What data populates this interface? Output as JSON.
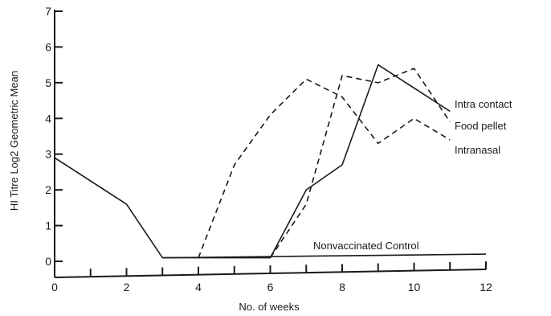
{
  "chart_data": {
    "type": "line",
    "title": "",
    "xlabel": "No. of weeks",
    "ylabel": "HI Titre Log2 Geometric Mean",
    "xlim": [
      0,
      12
    ],
    "ylim": [
      0,
      7
    ],
    "x_ticks": [
      0,
      2,
      4,
      6,
      8,
      10,
      12
    ],
    "x_minor_ticks": [
      1,
      3,
      5,
      7,
      9,
      11
    ],
    "y_ticks": [
      0,
      1,
      2,
      3,
      4,
      5,
      6,
      7
    ],
    "grid": false,
    "legend": "none",
    "series": [
      {
        "name": "Intra contact",
        "style": "dashed",
        "points": [
          [
            6,
            0.1
          ],
          [
            7,
            1.6
          ],
          [
            8,
            5.2
          ],
          [
            9,
            5.0
          ],
          [
            10,
            5.4
          ],
          [
            11,
            3.9
          ]
        ]
      },
      {
        "name": "Food pellet",
        "style": "solid",
        "points": [
          [
            0,
            2.9
          ],
          [
            2,
            1.6
          ],
          [
            3,
            0.1
          ],
          [
            4,
            0.1
          ],
          [
            6,
            0.1
          ],
          [
            7,
            2.0
          ],
          [
            8,
            2.7
          ],
          [
            9,
            5.5
          ],
          [
            11,
            4.2
          ]
        ]
      },
      {
        "name": "Intranasal",
        "style": "dashed",
        "points": [
          [
            4,
            0.1
          ],
          [
            5,
            2.7
          ],
          [
            6,
            4.1
          ],
          [
            7,
            5.1
          ],
          [
            8,
            4.6
          ],
          [
            9,
            3.3
          ],
          [
            10,
            4.0
          ],
          [
            11,
            3.4
          ]
        ]
      },
      {
        "name": "Nonvaccinated Control",
        "style": "solid",
        "points": [
          [
            3,
            0.1
          ],
          [
            12,
            0.2
          ]
        ]
      }
    ]
  }
}
